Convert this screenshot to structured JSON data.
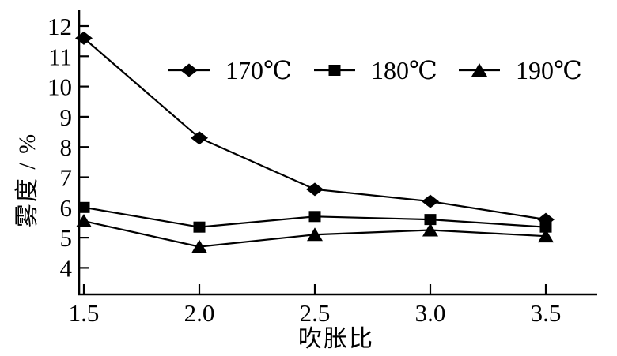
{
  "figure": {
    "background": "#ffffff",
    "ink_color": "#000000"
  },
  "chart_data": {
    "type": "line",
    "title": "",
    "xlabel": "吹胀比",
    "ylabel": "雾度 / %",
    "x": [
      1.5,
      2.0,
      2.5,
      3.0,
      3.5
    ],
    "x_tick_labels": [
      "1.5",
      "2.0",
      "2.5",
      "3.0",
      "3.5"
    ],
    "y_ticks": [
      4,
      5,
      6,
      7,
      8,
      9,
      10,
      11,
      12
    ],
    "xlim": [
      1.47,
      3.76
    ],
    "ylim": [
      3.1,
      12.5
    ],
    "grid": false,
    "legend_position": "top-inside-horizontal",
    "series": [
      {
        "name": "170℃",
        "marker": "diamond",
        "color": "#000000",
        "values": [
          11.6,
          8.3,
          6.6,
          6.2,
          5.6
        ]
      },
      {
        "name": "180℃",
        "marker": "square",
        "color": "#000000",
        "values": [
          6.0,
          5.35,
          5.7,
          5.6,
          5.35
        ]
      },
      {
        "name": "190℃",
        "marker": "triangle",
        "color": "#000000",
        "values": [
          5.55,
          4.7,
          5.1,
          5.25,
          5.05
        ]
      }
    ]
  }
}
